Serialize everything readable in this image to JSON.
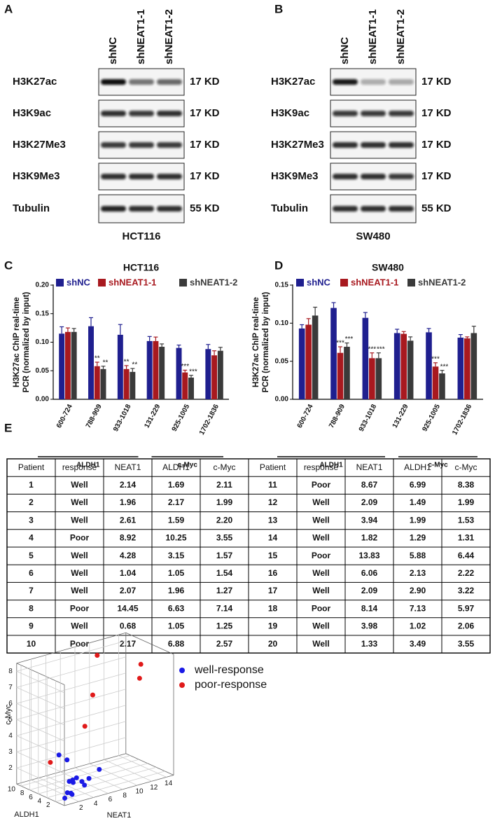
{
  "panel_labels": [
    "A",
    "B",
    "C",
    "D",
    "E"
  ],
  "blots": [
    {
      "lanes": [
        "shNC",
        "shNEAT1-1",
        "shNEAT1-2"
      ],
      "rows": [
        {
          "label": "H3K27ac",
          "size": "17 KD"
        },
        {
          "label": "H3K9ac",
          "size": "17 KD"
        },
        {
          "label": "H3K27Me3",
          "size": "17 KD"
        },
        {
          "label": "H3K9Me3",
          "size": "17 KD"
        },
        {
          "label": "Tubulin",
          "size": "55 KD"
        }
      ],
      "cell_line": "HCT116"
    },
    {
      "lanes": [
        "shNC",
        "shNEAT1-1",
        "shNEAT1-2"
      ],
      "rows": [
        {
          "label": "H3K27ac",
          "size": "17 KD"
        },
        {
          "label": "H3K9ac",
          "size": "17 KD"
        },
        {
          "label": "H3K27Me3",
          "size": "17 KD"
        },
        {
          "label": "H3K9Me3",
          "size": "17 KD"
        },
        {
          "label": "Tubulin",
          "size": "55 KD"
        }
      ],
      "cell_line": "SW480"
    }
  ],
  "chart_data": [
    {
      "type": "bar",
      "title": "HCT116",
      "ylabel": [
        "H3K27ac ChIP real-time",
        "PCR (normalized by input)"
      ],
      "categories": [
        "600-724",
        "788-909",
        "933-1018",
        "131-229",
        "925-1005",
        "1702-1836"
      ],
      "groups": [
        {
          "label": "ALDH1"
        },
        {
          "label": "c-Myc"
        }
      ],
      "ylim": [
        0,
        0.2
      ],
      "yticks": [
        {
          "value": 0,
          "label": "0.00"
        },
        {
          "value": 0.05,
          "label": "0.05"
        },
        {
          "value": 0.1,
          "label": "0.10"
        },
        {
          "value": 0.15,
          "label": "0.15"
        },
        {
          "value": 0.2,
          "label": "0.20"
        }
      ],
      "series": [
        {
          "name": "shNC",
          "color": "#1f1f8f",
          "values": [
            0.115,
            0.128,
            0.113,
            0.102,
            0.09,
            0.088
          ],
          "errors": [
            0.012,
            0.015,
            0.018,
            0.008,
            0.005,
            0.008
          ],
          "significance": [
            null,
            null,
            null,
            null,
            null,
            null
          ]
        },
        {
          "name": "shNEAT1-1",
          "color": "#a8191f",
          "values": [
            0.118,
            0.058,
            0.053,
            0.102,
            0.047,
            0.077
          ],
          "errors": [
            0.007,
            0.007,
            0.006,
            0.007,
            0.004,
            0.008
          ],
          "significance": [
            null,
            "**",
            "**",
            null,
            "***",
            null
          ]
        },
        {
          "name": "shNEAT1-2",
          "color": "#3a3a3a",
          "values": [
            0.118,
            0.053,
            0.048,
            0.092,
            0.038,
            0.085
          ],
          "errors": [
            0.006,
            0.005,
            0.006,
            0.005,
            0.004,
            0.006
          ],
          "significance": [
            null,
            "**",
            "**",
            null,
            "***",
            null
          ]
        }
      ]
    },
    {
      "type": "bar",
      "title": "SW480",
      "ylabel": [
        "H3K27ac ChIP real-time",
        "PCR (normalized by input)"
      ],
      "categories": [
        "600-724",
        "788-909",
        "933-1018",
        "131-229",
        "925-1005",
        "1702-1836"
      ],
      "groups": [
        {
          "label": "ALDH1"
        },
        {
          "label": "c-Myc"
        }
      ],
      "ylim": [
        0,
        0.15
      ],
      "yticks": [
        {
          "value": 0,
          "label": "0.00"
        },
        {
          "value": 0.05,
          "label": "0.05"
        },
        {
          "value": 0.1,
          "label": "0.10"
        },
        {
          "value": 0.15,
          "label": "0.15"
        }
      ],
      "series": [
        {
          "name": "shNC",
          "color": "#1f1f8f",
          "values": [
            0.093,
            0.12,
            0.107,
            0.087,
            0.088,
            0.081
          ],
          "errors": [
            0.005,
            0.007,
            0.007,
            0.005,
            0.005,
            0.004
          ],
          "significance": [
            null,
            null,
            null,
            null,
            null,
            null
          ]
        },
        {
          "name": "shNEAT1-1",
          "color": "#a8191f",
          "values": [
            0.098,
            0.061,
            0.054,
            0.086,
            0.043,
            0.08
          ],
          "errors": [
            0.008,
            0.008,
            0.007,
            0.003,
            0.005,
            0.002
          ],
          "significance": [
            null,
            "***",
            "***",
            null,
            "***",
            null
          ]
        },
        {
          "name": "shNEAT1-2",
          "color": "#3a3a3a",
          "values": [
            0.11,
            0.069,
            0.054,
            0.077,
            0.034,
            0.087
          ],
          "errors": [
            0.011,
            0.005,
            0.007,
            0.005,
            0.004,
            0.009
          ],
          "significance": [
            null,
            "***",
            "***",
            null,
            "***",
            null
          ]
        }
      ]
    },
    {
      "type": "scatter3d",
      "xlabel": "NEAT1",
      "ylabel": "ALDH1",
      "zlabel": "c-Myc",
      "xlim": [
        0,
        15
      ],
      "ylim": [
        0,
        11
      ],
      "zlim": [
        1,
        8.5
      ],
      "xticks": [
        2,
        4,
        6,
        8,
        10,
        12,
        14
      ],
      "yticks": [
        2,
        4,
        6,
        8,
        10
      ],
      "zticks": [
        2,
        3,
        4,
        5,
        6,
        7,
        8
      ],
      "grid": true,
      "series": [
        {
          "name": "well-response",
          "color": "#1a1ae6"
        },
        {
          "name": "poor-response",
          "color": "#e01a1a"
        }
      ]
    }
  ],
  "table": {
    "header": [
      "Patient",
      "response",
      "NEAT1",
      "ALDH1",
      "c-Myc",
      "Patient",
      "response",
      "NEAT1",
      "ALDH1",
      "c-Myc"
    ],
    "rows": [
      [
        "1",
        "Well",
        "2.14",
        "1.69",
        "2.11",
        "11",
        "Poor",
        "8.67",
        "6.99",
        "8.38"
      ],
      [
        "2",
        "Well",
        "1.96",
        "2.17",
        "1.99",
        "12",
        "Well",
        "2.09",
        "1.49",
        "1.99"
      ],
      [
        "3",
        "Well",
        "2.61",
        "1.59",
        "2.20",
        "13",
        "Well",
        "3.94",
        "1.99",
        "1.53"
      ],
      [
        "4",
        "Poor",
        "8.92",
        "10.25",
        "3.55",
        "14",
        "Well",
        "1.82",
        "1.29",
        "1.31"
      ],
      [
        "5",
        "Well",
        "4.28",
        "3.15",
        "1.57",
        "15",
        "Poor",
        "13.83",
        "5.88",
        "6.44"
      ],
      [
        "6",
        "Well",
        "1.04",
        "1.05",
        "1.54",
        "16",
        "Well",
        "6.06",
        "2.13",
        "2.22"
      ],
      [
        "7",
        "Well",
        "2.07",
        "1.96",
        "1.27",
        "17",
        "Well",
        "2.09",
        "2.90",
        "3.22"
      ],
      [
        "8",
        "Poor",
        "14.45",
        "6.63",
        "7.14",
        "18",
        "Poor",
        "8.14",
        "7.13",
        "5.97"
      ],
      [
        "9",
        "Well",
        "0.68",
        "1.05",
        "1.25",
        "19",
        "Well",
        "3.98",
        "1.02",
        "2.06"
      ],
      [
        "10",
        "Poor",
        "2.17",
        "6.88",
        "2.57",
        "20",
        "Well",
        "1.33",
        "3.49",
        "3.55"
      ]
    ]
  }
}
